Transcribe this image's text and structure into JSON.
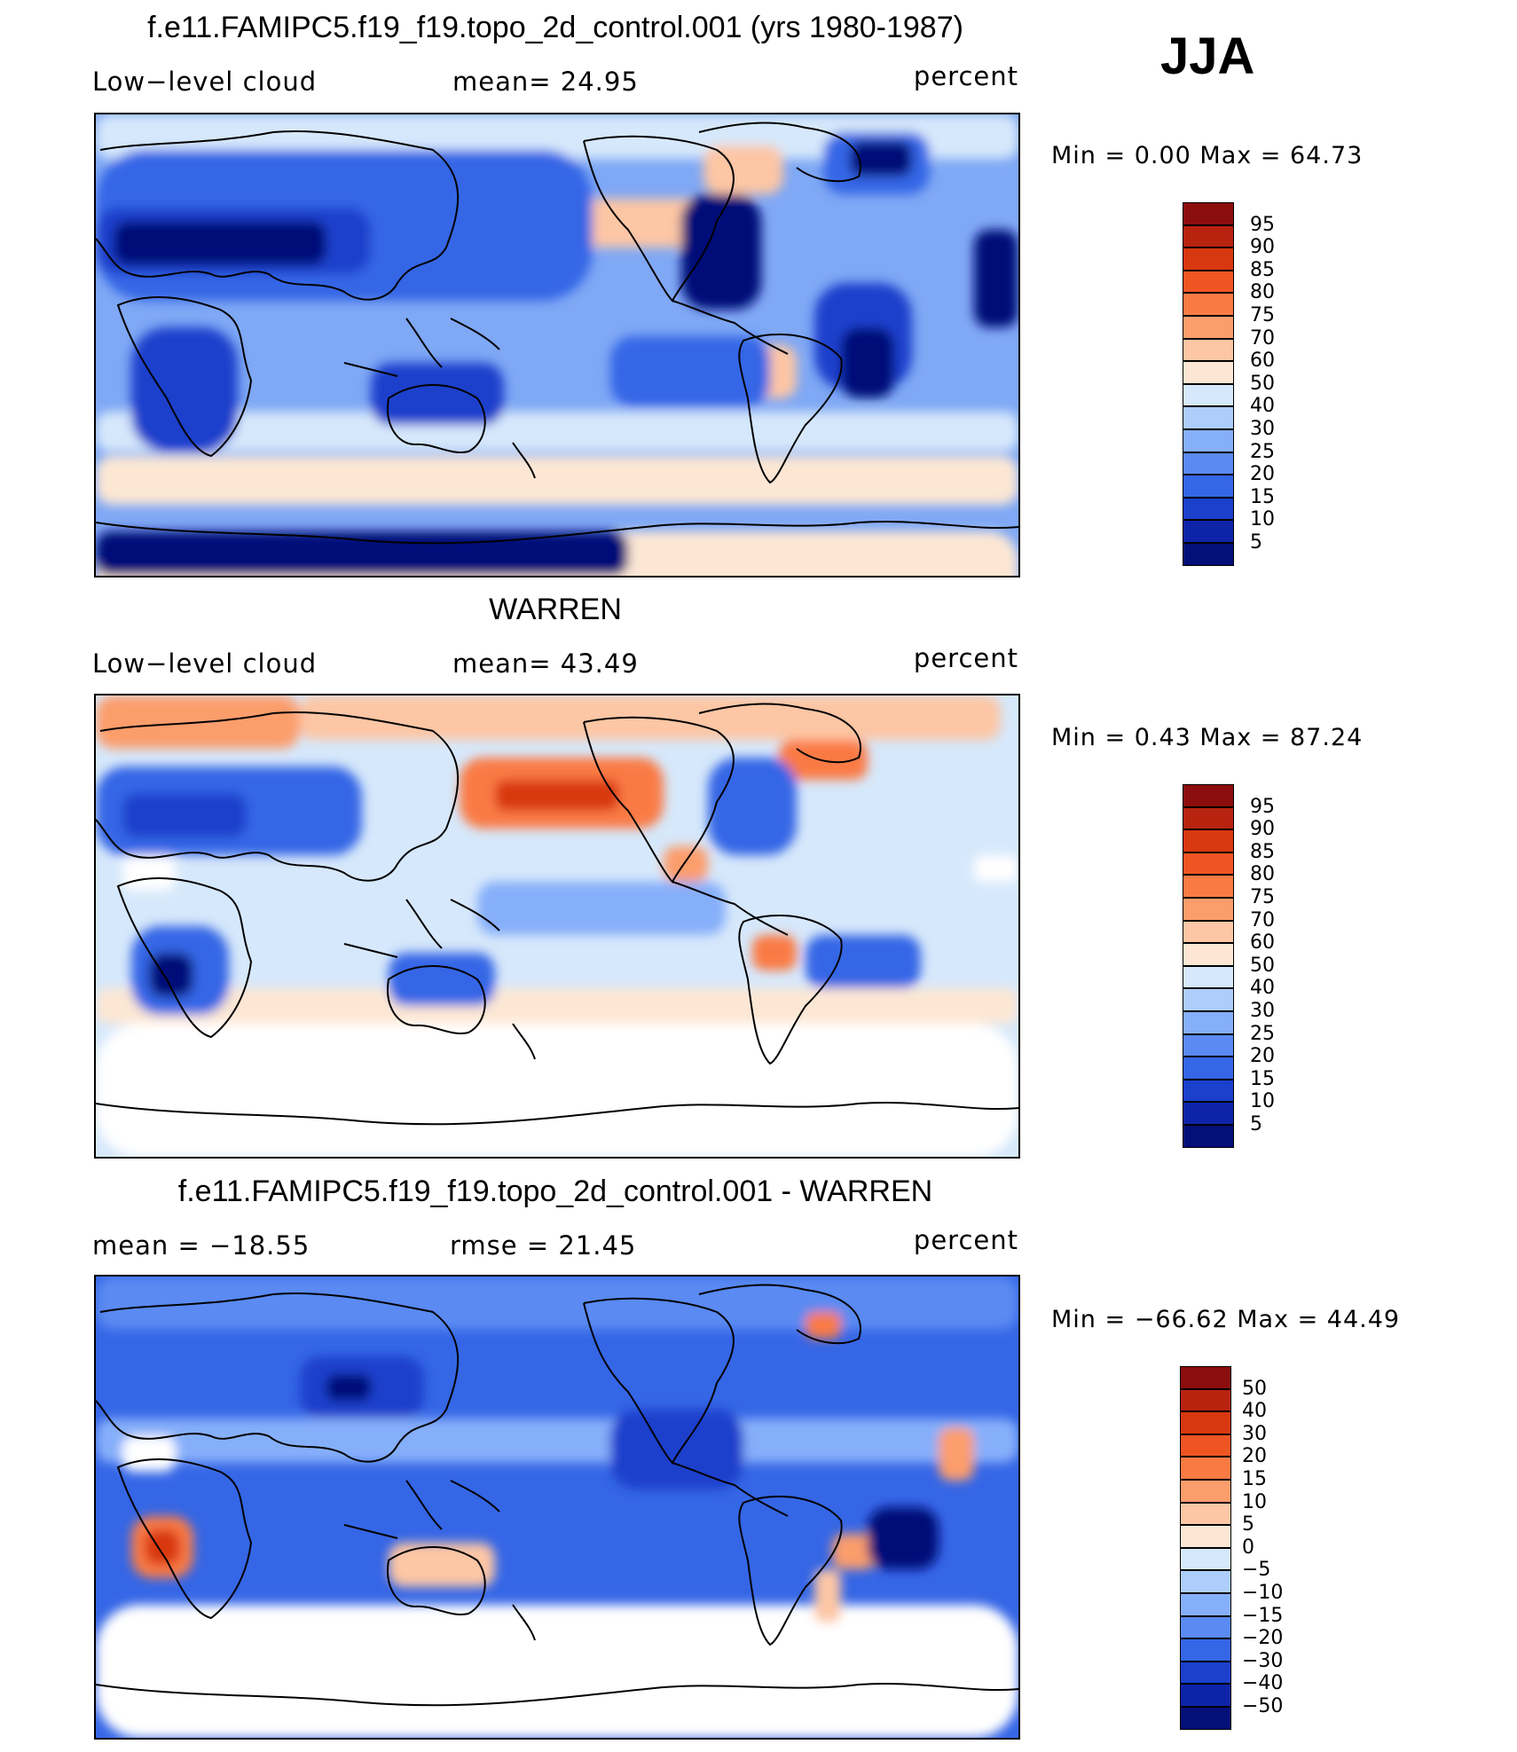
{
  "season": "JJA",
  "panels": [
    {
      "id": "model",
      "title": "f.e11.FAMIPC5.f19_f19.topo_2d_control.001 (yrs 1980-1987)",
      "left_label": "Low−level cloud",
      "center_label": "mean=   24.95",
      "right_label": "percent",
      "minmax": "Min =    0.00 Max =   64.73",
      "colorbar": {
        "labels": [
          "95",
          "90",
          "85",
          "80",
          "75",
          "70",
          "60",
          "50",
          "40",
          "30",
          "25",
          "20",
          "15",
          "10",
          "5"
        ],
        "colors": [
          "#8c0d0d",
          "#b82310",
          "#d8380f",
          "#ef5523",
          "#fa7a44",
          "#fc9d6c",
          "#fdc6a4",
          "#fde7d4",
          "#d6e8fb",
          "#adcdfb",
          "#86affa",
          "#5a8af2",
          "#3566e6",
          "#1a40cc",
          "#0d24a8",
          "#050f78"
        ]
      },
      "field": {
        "background": "#7fa8f5",
        "regions": [
          {
            "color": "#fde7d4",
            "x": 0,
            "y": 470,
            "w": 1040,
            "h": 100
          },
          {
            "color": "#fde7d4",
            "x": 0,
            "y": 385,
            "w": 1040,
            "h": 55
          },
          {
            "color": "#d6e8fb",
            "x": 0,
            "y": 0,
            "w": 1040,
            "h": 50
          },
          {
            "color": "#d6e8fb",
            "x": 0,
            "y": 335,
            "w": 1040,
            "h": 45
          },
          {
            "color": "#fdc6a4",
            "x": 440,
            "y": 95,
            "w": 250,
            "h": 55
          },
          {
            "color": "#fdc6a4",
            "x": 685,
            "y": 35,
            "w": 90,
            "h": 55
          },
          {
            "color": "#fdc6a4",
            "x": 740,
            "y": 260,
            "w": 50,
            "h": 60
          },
          {
            "color": "#3566e6",
            "x": 0,
            "y": 40,
            "w": 560,
            "h": 170
          },
          {
            "color": "#1a40cc",
            "x": 0,
            "y": 105,
            "w": 310,
            "h": 75
          },
          {
            "color": "#050f78",
            "x": 20,
            "y": 120,
            "w": 240,
            "h": 50
          },
          {
            "color": "#050f78",
            "x": 660,
            "y": 90,
            "w": 90,
            "h": 130
          },
          {
            "color": "#1a40cc",
            "x": 810,
            "y": 190,
            "w": 110,
            "h": 120
          },
          {
            "color": "#050f78",
            "x": 840,
            "y": 240,
            "w": 60,
            "h": 80
          },
          {
            "color": "#1a40cc",
            "x": 40,
            "y": 240,
            "w": 120,
            "h": 140
          },
          {
            "color": "#1a40cc",
            "x": 310,
            "y": 280,
            "w": 150,
            "h": 70
          },
          {
            "color": "#3566e6",
            "x": 580,
            "y": 250,
            "w": 180,
            "h": 80
          },
          {
            "color": "#050f78",
            "x": 0,
            "y": 470,
            "w": 600,
            "h": 50
          },
          {
            "color": "#050f78",
            "x": 990,
            "y": 130,
            "w": 50,
            "h": 110
          },
          {
            "color": "#3566e6",
            "x": 820,
            "y": 20,
            "w": 120,
            "h": 70
          },
          {
            "color": "#050f78",
            "x": 850,
            "y": 30,
            "w": 70,
            "h": 40
          }
        ]
      }
    },
    {
      "id": "obs",
      "title": "WARREN",
      "left_label": "Low−level cloud",
      "center_label": "mean=   43.49",
      "right_label": "percent",
      "minmax": "Min =    0.43 Max =   87.24",
      "colorbar": {
        "labels": [
          "95",
          "90",
          "85",
          "80",
          "75",
          "70",
          "60",
          "50",
          "40",
          "30",
          "25",
          "20",
          "15",
          "10",
          "5"
        ],
        "colors": [
          "#8c0d0d",
          "#b82310",
          "#d8380f",
          "#ef5523",
          "#fa7a44",
          "#fc9d6c",
          "#fdc6a4",
          "#fde7d4",
          "#d6e8fb",
          "#adcdfb",
          "#86affa",
          "#5a8af2",
          "#3566e6",
          "#1a40cc",
          "#0d24a8",
          "#050f78"
        ]
      },
      "field": {
        "background": "#d6e8fb",
        "regions": [
          {
            "color": "#ffffff",
            "x": 0,
            "y": 370,
            "w": 1040,
            "h": 150
          },
          {
            "color": "#fde7d4",
            "x": 0,
            "y": 330,
            "w": 1040,
            "h": 40
          },
          {
            "color": "#fc9d6c",
            "x": 0,
            "y": 0,
            "w": 230,
            "h": 60
          },
          {
            "color": "#fdc6a4",
            "x": 230,
            "y": 0,
            "w": 790,
            "h": 50
          },
          {
            "color": "#fa7a44",
            "x": 410,
            "y": 70,
            "w": 230,
            "h": 80
          },
          {
            "color": "#d8380f",
            "x": 450,
            "y": 95,
            "w": 140,
            "h": 35
          },
          {
            "color": "#fc9d6c",
            "x": 640,
            "y": 170,
            "w": 50,
            "h": 40
          },
          {
            "color": "#fa7a44",
            "x": 770,
            "y": 50,
            "w": 100,
            "h": 45
          },
          {
            "color": "#3566e6",
            "x": 0,
            "y": 80,
            "w": 300,
            "h": 100
          },
          {
            "color": "#1a40cc",
            "x": 30,
            "y": 110,
            "w": 140,
            "h": 50
          },
          {
            "color": "#3566e6",
            "x": 690,
            "y": 70,
            "w": 100,
            "h": 110
          },
          {
            "color": "#3566e6",
            "x": 40,
            "y": 260,
            "w": 110,
            "h": 100
          },
          {
            "color": "#050f78",
            "x": 60,
            "y": 290,
            "w": 50,
            "h": 50
          },
          {
            "color": "#3566e6",
            "x": 330,
            "y": 290,
            "w": 120,
            "h": 60
          },
          {
            "color": "#fa7a44",
            "x": 740,
            "y": 270,
            "w": 50,
            "h": 40
          },
          {
            "color": "#3566e6",
            "x": 800,
            "y": 270,
            "w": 130,
            "h": 60
          },
          {
            "color": "#86affa",
            "x": 430,
            "y": 210,
            "w": 280,
            "h": 60
          },
          {
            "color": "#ffffff",
            "x": 30,
            "y": 180,
            "w": 60,
            "h": 40
          },
          {
            "color": "#ffffff",
            "x": 990,
            "y": 180,
            "w": 50,
            "h": 30
          }
        ]
      }
    },
    {
      "id": "diff",
      "title": "f.e11.FAMIPC5.f19_f19.topo_2d_control.001 - WARREN",
      "left_label": "mean  =  −18.55",
      "center_label": "rmse  =   21.45",
      "right_label": "percent",
      "minmax": "Min = −66.62 Max =   44.49",
      "colorbar": {
        "labels": [
          "50",
          "40",
          "30",
          "20",
          "15",
          "10",
          "5",
          "0",
          "−5",
          "−10",
          "−15",
          "−20",
          "−30",
          "−40",
          "−50"
        ],
        "colors": [
          "#8c0d0d",
          "#b82310",
          "#d8380f",
          "#ef5523",
          "#fa7a44",
          "#fc9d6c",
          "#fdc6a4",
          "#fde7d4",
          "#d6e8fb",
          "#adcdfb",
          "#86affa",
          "#5a8af2",
          "#3566e6",
          "#1a40cc",
          "#0d24a8",
          "#050f78"
        ]
      },
      "field": {
        "background": "#3566e6",
        "regions": [
          {
            "color": "#ffffff",
            "x": 0,
            "y": 370,
            "w": 1040,
            "h": 150
          },
          {
            "color": "#5a8af2",
            "x": 0,
            "y": 0,
            "w": 1040,
            "h": 60
          },
          {
            "color": "#86affa",
            "x": 0,
            "y": 160,
            "w": 1040,
            "h": 50
          },
          {
            "color": "#1a40cc",
            "x": 230,
            "y": 90,
            "w": 140,
            "h": 70
          },
          {
            "color": "#050f78",
            "x": 260,
            "y": 110,
            "w": 50,
            "h": 30
          },
          {
            "color": "#1a40cc",
            "x": 580,
            "y": 150,
            "w": 150,
            "h": 90
          },
          {
            "color": "#fa7a44",
            "x": 40,
            "y": 270,
            "w": 70,
            "h": 70
          },
          {
            "color": "#d8380f",
            "x": 55,
            "y": 285,
            "w": 40,
            "h": 40
          },
          {
            "color": "#fdc6a4",
            "x": 330,
            "y": 300,
            "w": 120,
            "h": 50
          },
          {
            "color": "#fc9d6c",
            "x": 830,
            "y": 290,
            "w": 50,
            "h": 40
          },
          {
            "color": "#fc9d6c",
            "x": 950,
            "y": 170,
            "w": 40,
            "h": 60
          },
          {
            "color": "#fa7a44",
            "x": 800,
            "y": 40,
            "w": 40,
            "h": 30
          },
          {
            "color": "#ffffff",
            "x": 30,
            "y": 180,
            "w": 60,
            "h": 40
          },
          {
            "color": "#fdc6a4",
            "x": 810,
            "y": 330,
            "w": 30,
            "h": 60
          },
          {
            "color": "#050f78",
            "x": 870,
            "y": 260,
            "w": 80,
            "h": 70
          }
        ]
      }
    }
  ]
}
